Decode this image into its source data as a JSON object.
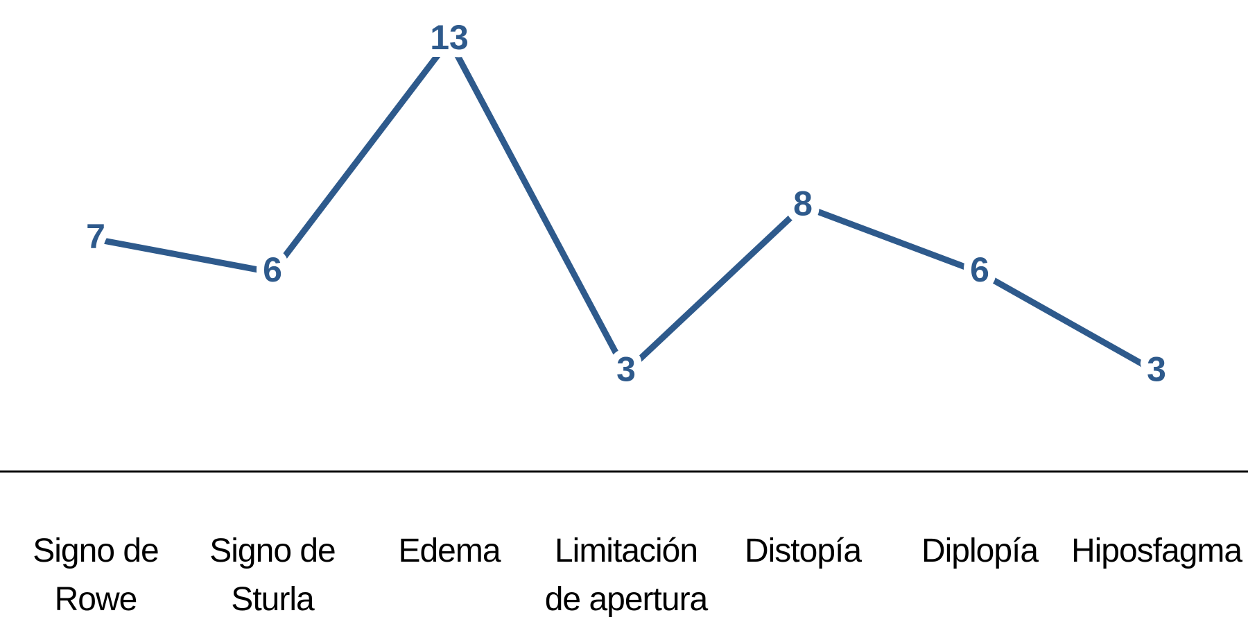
{
  "chart_data": {
    "type": "line",
    "categories": [
      "Signo de Rowe",
      "Signo de Sturla",
      "Edema",
      "Limitación de apertura",
      "Distopía",
      "Diplopía",
      "Hiposfagma"
    ],
    "values": [
      7,
      6,
      13,
      3,
      8,
      6,
      3
    ],
    "color": "#2e5a8c",
    "ylim": [
      0,
      14
    ]
  }
}
